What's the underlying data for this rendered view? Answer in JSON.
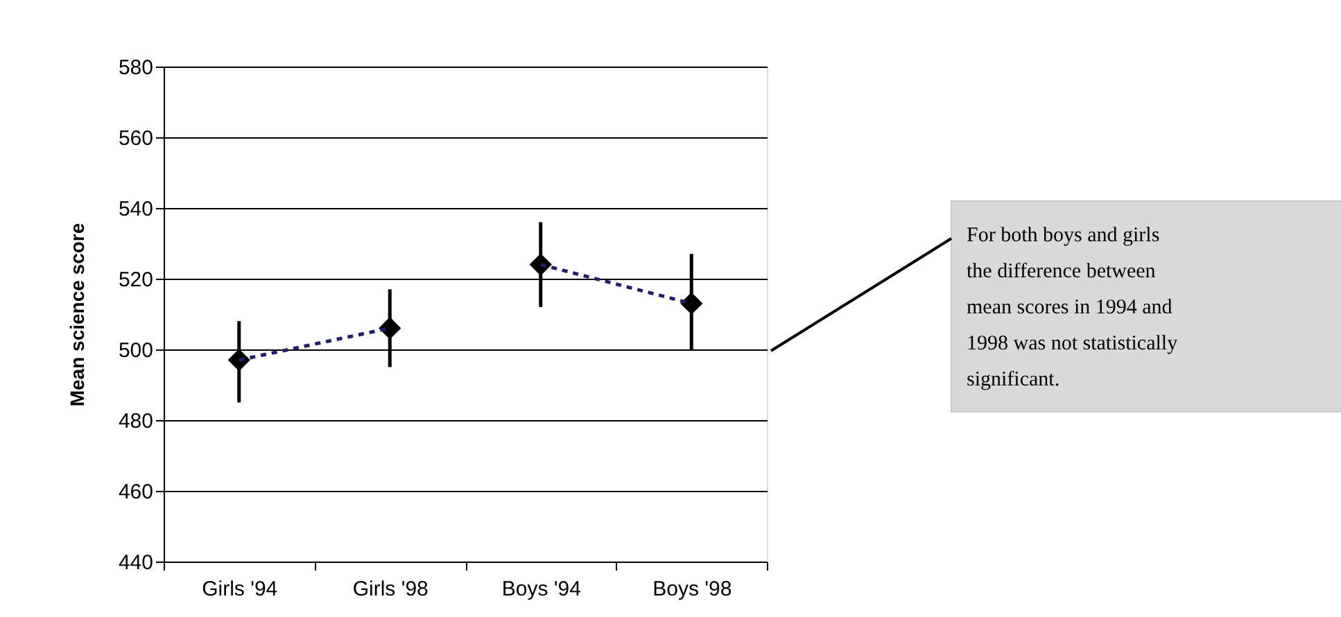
{
  "chart_data": {
    "type": "scatter",
    "ylabel": "Mean science score",
    "categories": [
      "Girls '94",
      "Girls '98",
      "Boys '94",
      "Boys '98"
    ],
    "series": [
      {
        "color": "#000000",
        "marker": "diamond",
        "values": [
          497,
          506,
          524,
          513
        ],
        "errors": [
          [
            485,
            508
          ],
          [
            495,
            517
          ],
          [
            512,
            536
          ],
          [
            500,
            527
          ]
        ]
      },
      {
        "type": "line",
        "color": "#1f1f6e",
        "line_style": "dashed",
        "marker": "none",
        "values": [
          497,
          506,
          null,
          null
        ]
      },
      {
        "type": "line",
        "color": "#1f1f6e",
        "line_style": "dashed",
        "marker": "none",
        "values": [
          null,
          null,
          524,
          513
        ]
      }
    ],
    "ylim": [
      440,
      580
    ],
    "yticks": [
      440,
      460,
      480,
      500,
      520,
      540,
      560,
      580
    ],
    "grid": "y",
    "legend": false,
    "annotations": [
      "For both boys and girls the difference between mean scores in 1994 and 1998 was not statistically significant."
    ]
  }
}
